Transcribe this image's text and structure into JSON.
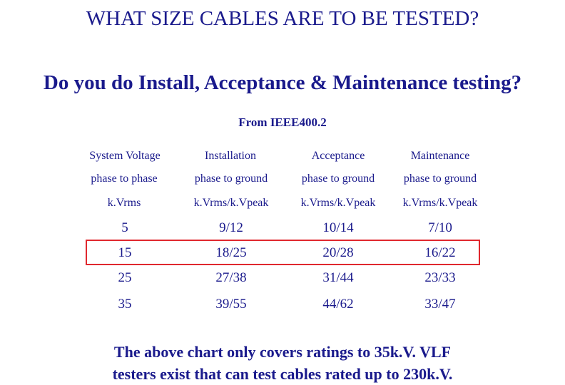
{
  "title": "WHAT SIZE CABLES ARE TO BE TESTED?",
  "subtitle": "Do you do Install, Acceptance & Maintenance testing?",
  "source": "From IEEE400.2",
  "table": {
    "header_rows": [
      [
        "System Voltage",
        "Installation",
        "Acceptance",
        "Maintenance"
      ],
      [
        "phase to phase",
        "phase to ground",
        "phase to ground",
        "phase to ground"
      ],
      [
        "k.Vrms",
        "k.Vrms/k.Vpeak",
        "k.Vrms/k.Vpeak",
        "k.Vrms/k.Vpeak"
      ]
    ],
    "rows": [
      [
        "5",
        "9/12",
        "10/14",
        "7/10"
      ],
      [
        "15",
        "18/25",
        "20/28",
        "16/22"
      ],
      [
        "25",
        "27/38",
        "31/44",
        "23/33"
      ],
      [
        "35",
        "39/55",
        "44/62",
        "33/47"
      ]
    ],
    "highlighted_row": "15",
    "highlight_color": "#e0282e"
  },
  "footer": {
    "line1": "The above chart only covers ratings to 35k.V. VLF",
    "line2": "testers exist that can test cables rated up to 230k.V."
  },
  "colors": {
    "text": "#1a1a8c",
    "highlight": "#e0282e"
  }
}
